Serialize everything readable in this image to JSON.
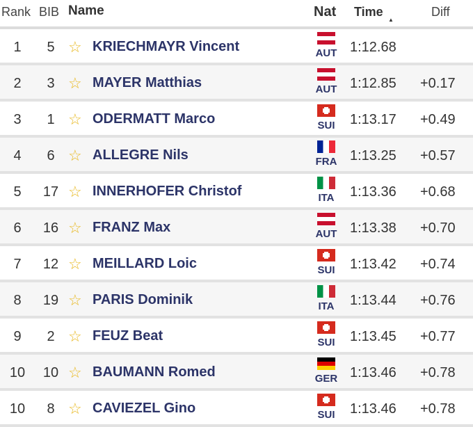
{
  "header": {
    "rank": "Rank",
    "bib": "BIB",
    "name": "Name",
    "nat": "Nat",
    "time": "Time",
    "sort_indicator": "▲",
    "diff": "Diff"
  },
  "star_icon": "☆",
  "flag_colors": {
    "AUT": [
      "#c8102e",
      "#ffffff",
      "#c8102e"
    ],
    "SUI": "#d52b1e",
    "FRA": [
      "#002395",
      "#ffffff",
      "#ed2939"
    ],
    "ITA": [
      "#009246",
      "#ffffff",
      "#ce2b37"
    ],
    "GER": [
      "#000000",
      "#dd0000",
      "#ffce00"
    ]
  },
  "rows": [
    {
      "rank": "1",
      "bib": "5",
      "name": "KRIECHMAYR Vincent",
      "nat": "AUT",
      "time": "1:12.68",
      "diff": ""
    },
    {
      "rank": "2",
      "bib": "3",
      "name": "MAYER Matthias",
      "nat": "AUT",
      "time": "1:12.85",
      "diff": "+0.17"
    },
    {
      "rank": "3",
      "bib": "1",
      "name": "ODERMATT Marco",
      "nat": "SUI",
      "time": "1:13.17",
      "diff": "+0.49"
    },
    {
      "rank": "4",
      "bib": "6",
      "name": "ALLEGRE Nils",
      "nat": "FRA",
      "time": "1:13.25",
      "diff": "+0.57"
    },
    {
      "rank": "5",
      "bib": "17",
      "name": "INNERHOFER Christof",
      "nat": "ITA",
      "time": "1:13.36",
      "diff": "+0.68"
    },
    {
      "rank": "6",
      "bib": "16",
      "name": "FRANZ Max",
      "nat": "AUT",
      "time": "1:13.38",
      "diff": "+0.70"
    },
    {
      "rank": "7",
      "bib": "12",
      "name": "MEILLARD Loic",
      "nat": "SUI",
      "time": "1:13.42",
      "diff": "+0.74"
    },
    {
      "rank": "8",
      "bib": "19",
      "name": "PARIS Dominik",
      "nat": "ITA",
      "time": "1:13.44",
      "diff": "+0.76"
    },
    {
      "rank": "9",
      "bib": "2",
      "name": "FEUZ Beat",
      "nat": "SUI",
      "time": "1:13.45",
      "diff": "+0.77"
    },
    {
      "rank": "10",
      "bib": "10",
      "name": "BAUMANN Romed",
      "nat": "GER",
      "time": "1:13.46",
      "diff": "+0.78"
    },
    {
      "rank": "10",
      "bib": "8",
      "name": "CAVIEZEL Gino",
      "nat": "SUI",
      "time": "1:13.46",
      "diff": "+0.78"
    }
  ]
}
